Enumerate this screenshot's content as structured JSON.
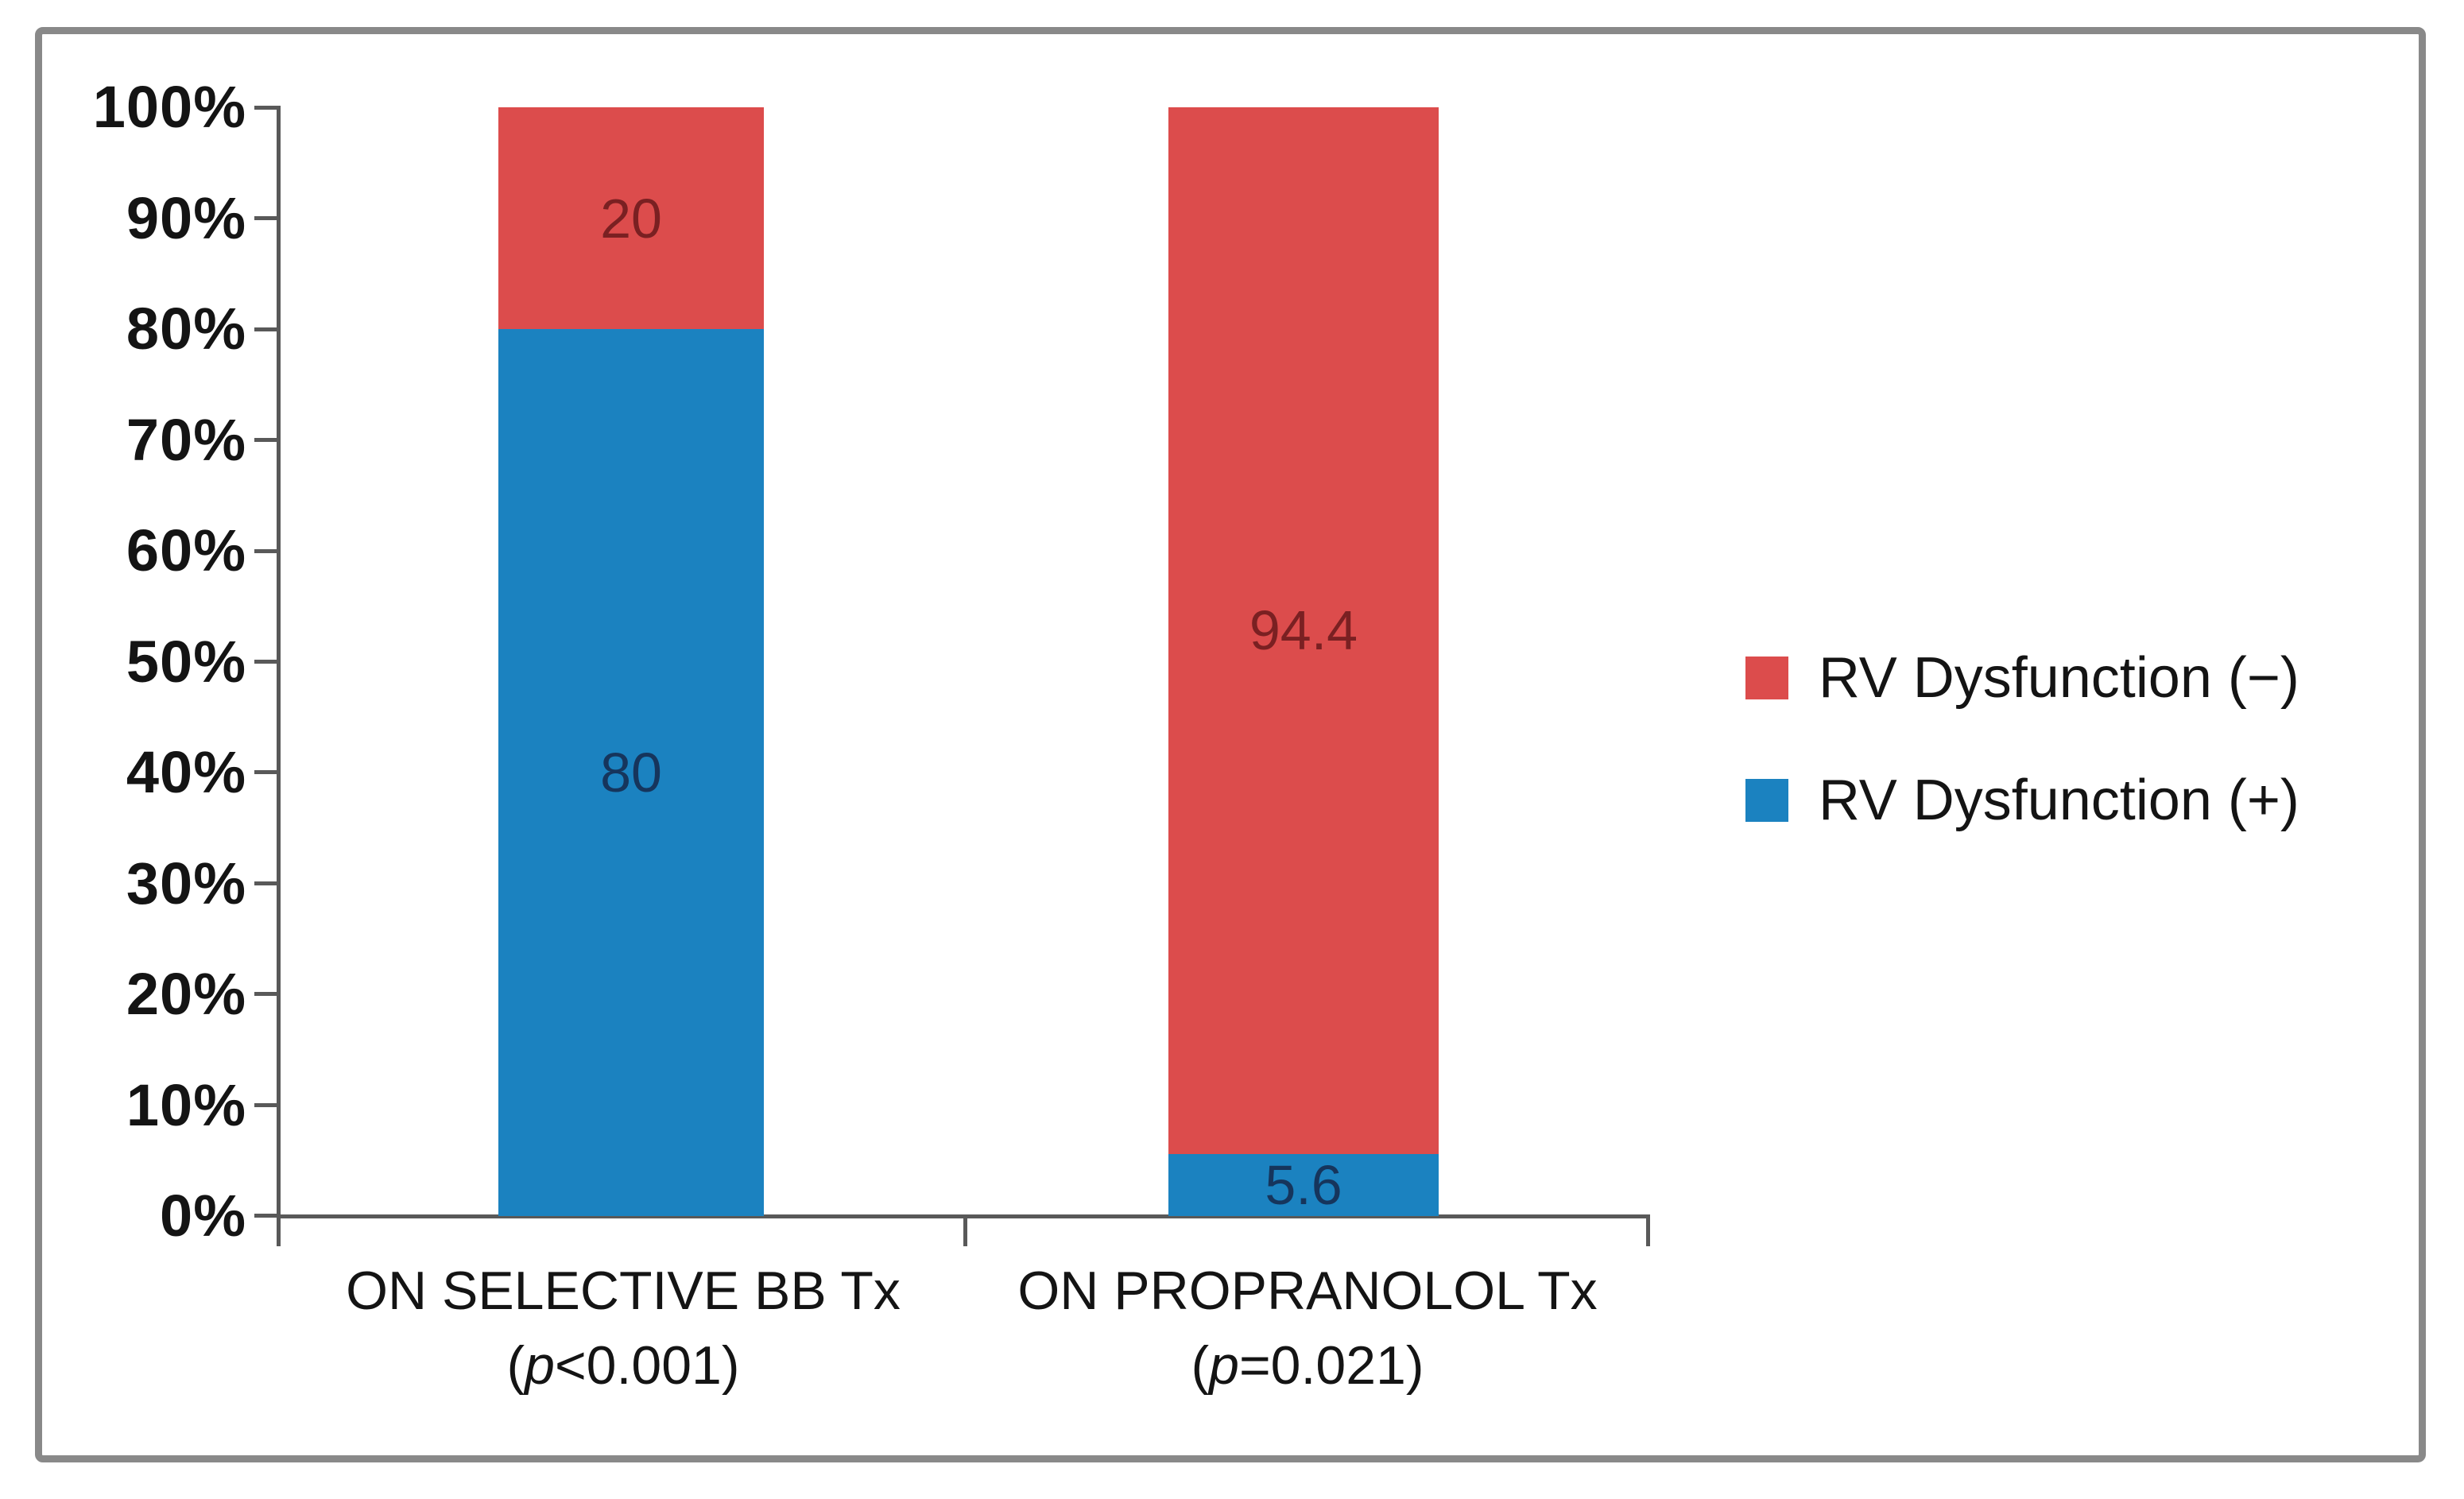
{
  "chart_data": {
    "type": "bar",
    "variant": "stacked-100-percent",
    "title": "",
    "grid": false,
    "categories": [
      {
        "label": "ON SELECTIVE BB Tx",
        "sub_open": "(",
        "sub_p": "p",
        "sub_rest": "<0.001)"
      },
      {
        "label": "ON PROPRANOLOL Tx",
        "sub_open": "(",
        "sub_p": "p",
        "sub_rest": "=0.021)"
      }
    ],
    "series": [
      {
        "name": "RV Dysfunction (−)",
        "color": "#DC4C4C",
        "label_color": "#7A2022",
        "values": [
          20,
          94.4
        ]
      },
      {
        "name": "RV Dysfunction (+)",
        "color": "#1B82C0",
        "label_color": "#16355C",
        "values": [
          80,
          5.6
        ]
      }
    ],
    "y_axis": {
      "min": 0,
      "max": 100,
      "unit": "%",
      "ticks": [
        "100%",
        "90%",
        "80%",
        "70%",
        "60%",
        "50%",
        "40%",
        "30%",
        "20%",
        "10%",
        "0%"
      ]
    },
    "legend_position": "right"
  },
  "colors": {
    "frame_border": "#898989",
    "axis": "#595959",
    "text": "#141414"
  }
}
